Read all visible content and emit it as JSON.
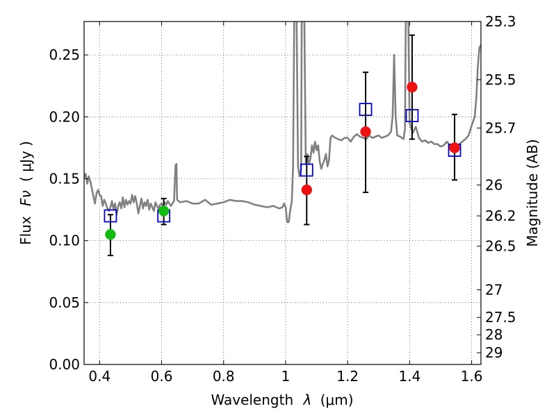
{
  "chart_data": {
    "type": "scatter",
    "xlabel_text": "Wavelength",
    "xlabel_symbol": "λ",
    "xlabel_unit": "(μm)",
    "ylabel_text": "Flux",
    "ylabel_symbol": "Fν",
    "ylabel_unit": "( μJy )",
    "y2label": "Magnitude (AB)",
    "xlim": [
      0.35,
      1.63
    ],
    "ylim": [
      0.0,
      0.277
    ],
    "grid": true,
    "x_ticks": [
      {
        "value": 0.4,
        "label": "0.4"
      },
      {
        "value": 0.6,
        "label": "0.6"
      },
      {
        "value": 0.8,
        "label": "0.8"
      },
      {
        "value": 1.0,
        "label": "1"
      },
      {
        "value": 1.2,
        "label": "1.2"
      },
      {
        "value": 1.4,
        "label": "1.4"
      },
      {
        "value": 1.6,
        "label": "1.6"
      }
    ],
    "y_ticks": [
      {
        "value": 0.0,
        "label": "0.00"
      },
      {
        "value": 0.05,
        "label": "0.05"
      },
      {
        "value": 0.1,
        "label": "0.10"
      },
      {
        "value": 0.15,
        "label": "0.15"
      },
      {
        "value": 0.2,
        "label": "0.20"
      },
      {
        "value": 0.25,
        "label": "0.25"
      }
    ],
    "mag_ticks": [
      {
        "flux": 0.277,
        "label": "25.3"
      },
      {
        "flux": 0.23,
        "label": "25.5"
      },
      {
        "flux": 0.191,
        "label": "25.7"
      },
      {
        "flux": 0.145,
        "label": "26"
      },
      {
        "flux": 0.12,
        "label": "26.2"
      },
      {
        "flux": 0.0955,
        "label": "26.5"
      },
      {
        "flux": 0.0603,
        "label": "27"
      },
      {
        "flux": 0.038,
        "label": "27.5"
      },
      {
        "flux": 0.024,
        "label": "28"
      },
      {
        "flux": 0.0095,
        "label": "29"
      }
    ],
    "series": [
      {
        "kind": "line",
        "color": "#808080",
        "points": [
          [
            0.35,
            0.151
          ],
          [
            0.355,
            0.154
          ],
          [
            0.36,
            0.146
          ],
          [
            0.365,
            0.152
          ],
          [
            0.37,
            0.148
          ],
          [
            0.375,
            0.142
          ],
          [
            0.38,
            0.136
          ],
          [
            0.385,
            0.13
          ],
          [
            0.39,
            0.138
          ],
          [
            0.395,
            0.141
          ],
          [
            0.4,
            0.137
          ],
          [
            0.405,
            0.136
          ],
          [
            0.41,
            0.128
          ],
          [
            0.415,
            0.133
          ],
          [
            0.42,
            0.13
          ],
          [
            0.425,
            0.126
          ],
          [
            0.43,
            0.124
          ],
          [
            0.435,
            0.127
          ],
          [
            0.44,
            0.132
          ],
          [
            0.445,
            0.125
          ],
          [
            0.45,
            0.13
          ],
          [
            0.455,
            0.121
          ],
          [
            0.46,
            0.128
          ],
          [
            0.465,
            0.131
          ],
          [
            0.47,
            0.126
          ],
          [
            0.475,
            0.135
          ],
          [
            0.48,
            0.127
          ],
          [
            0.485,
            0.133
          ],
          [
            0.49,
            0.129
          ],
          [
            0.495,
            0.132
          ],
          [
            0.5,
            0.13
          ],
          [
            0.505,
            0.137
          ],
          [
            0.51,
            0.131
          ],
          [
            0.515,
            0.136
          ],
          [
            0.52,
            0.13
          ],
          [
            0.525,
            0.122
          ],
          [
            0.53,
            0.128
          ],
          [
            0.535,
            0.134
          ],
          [
            0.54,
            0.126
          ],
          [
            0.545,
            0.131
          ],
          [
            0.55,
            0.128
          ],
          [
            0.555,
            0.133
          ],
          [
            0.56,
            0.125
          ],
          [
            0.565,
            0.13
          ],
          [
            0.57,
            0.127
          ],
          [
            0.575,
            0.124
          ],
          [
            0.58,
            0.131
          ],
          [
            0.585,
            0.128
          ],
          [
            0.59,
            0.126
          ],
          [
            0.595,
            0.129
          ],
          [
            0.6,
            0.13
          ],
          [
            0.605,
            0.127
          ],
          [
            0.61,
            0.131
          ],
          [
            0.615,
            0.129
          ],
          [
            0.62,
            0.132
          ],
          [
            0.625,
            0.13
          ],
          [
            0.63,
            0.128
          ],
          [
            0.635,
            0.13
          ],
          [
            0.64,
            0.132
          ],
          [
            0.645,
            0.161
          ],
          [
            0.648,
            0.162
          ],
          [
            0.65,
            0.133
          ],
          [
            0.66,
            0.131
          ],
          [
            0.68,
            0.132
          ],
          [
            0.7,
            0.13
          ],
          [
            0.72,
            0.13
          ],
          [
            0.74,
            0.133
          ],
          [
            0.75,
            0.131
          ],
          [
            0.76,
            0.129
          ],
          [
            0.78,
            0.13
          ],
          [
            0.8,
            0.131
          ],
          [
            0.82,
            0.133
          ],
          [
            0.84,
            0.132
          ],
          [
            0.86,
            0.132
          ],
          [
            0.88,
            0.131
          ],
          [
            0.9,
            0.129
          ],
          [
            0.92,
            0.128
          ],
          [
            0.94,
            0.127
          ],
          [
            0.96,
            0.128
          ],
          [
            0.98,
            0.126
          ],
          [
            0.99,
            0.127
          ],
          [
            0.995,
            0.13
          ],
          [
            1.0,
            0.127
          ],
          [
            1.005,
            0.115
          ],
          [
            1.01,
            0.115
          ],
          [
            1.015,
            0.125
          ],
          [
            1.02,
            0.132
          ],
          [
            1.024,
            0.16
          ],
          [
            1.028,
            0.29
          ],
          [
            1.035,
            0.29
          ],
          [
            1.04,
            0.16
          ],
          [
            1.045,
            0.152
          ],
          [
            1.05,
            0.157
          ],
          [
            1.052,
            0.29
          ],
          [
            1.06,
            0.29
          ],
          [
            1.065,
            0.162
          ],
          [
            1.07,
            0.17
          ],
          [
            1.075,
            0.162
          ],
          [
            1.08,
            0.166
          ],
          [
            1.085,
            0.177
          ],
          [
            1.09,
            0.171
          ],
          [
            1.095,
            0.18
          ],
          [
            1.1,
            0.173
          ],
          [
            1.105,
            0.177
          ],
          [
            1.11,
            0.164
          ],
          [
            1.115,
            0.158
          ],
          [
            1.12,
            0.162
          ],
          [
            1.125,
            0.165
          ],
          [
            1.13,
            0.17
          ],
          [
            1.135,
            0.16
          ],
          [
            1.14,
            0.165
          ],
          [
            1.145,
            0.183
          ],
          [
            1.15,
            0.185
          ],
          [
            1.16,
            0.183
          ],
          [
            1.17,
            0.182
          ],
          [
            1.18,
            0.181
          ],
          [
            1.19,
            0.183
          ],
          [
            1.2,
            0.183
          ],
          [
            1.21,
            0.18
          ],
          [
            1.22,
            0.184
          ],
          [
            1.23,
            0.186
          ],
          [
            1.24,
            0.184
          ],
          [
            1.25,
            0.183
          ],
          [
            1.26,
            0.182
          ],
          [
            1.27,
            0.185
          ],
          [
            1.28,
            0.183
          ],
          [
            1.29,
            0.184
          ],
          [
            1.3,
            0.185
          ],
          [
            1.31,
            0.183
          ],
          [
            1.32,
            0.184
          ],
          [
            1.33,
            0.185
          ],
          [
            1.34,
            0.188
          ],
          [
            1.345,
            0.2
          ],
          [
            1.35,
            0.25
          ],
          [
            1.355,
            0.2
          ],
          [
            1.36,
            0.185
          ],
          [
            1.37,
            0.184
          ],
          [
            1.38,
            0.182
          ],
          [
            1.385,
            0.19
          ],
          [
            1.388,
            0.29
          ],
          [
            1.395,
            0.29
          ],
          [
            1.4,
            0.195
          ],
          [
            1.41,
            0.187
          ],
          [
            1.42,
            0.192
          ],
          [
            1.43,
            0.183
          ],
          [
            1.44,
            0.18
          ],
          [
            1.45,
            0.181
          ],
          [
            1.46,
            0.179
          ],
          [
            1.47,
            0.18
          ],
          [
            1.48,
            0.178
          ],
          [
            1.49,
            0.178
          ],
          [
            1.5,
            0.176
          ],
          [
            1.51,
            0.177
          ],
          [
            1.52,
            0.18
          ],
          [
            1.53,
            0.177
          ],
          [
            1.54,
            0.177
          ],
          [
            1.55,
            0.176
          ],
          [
            1.56,
            0.178
          ],
          [
            1.57,
            0.18
          ],
          [
            1.58,
            0.182
          ],
          [
            1.59,
            0.185
          ],
          [
            1.6,
            0.193
          ],
          [
            1.61,
            0.2
          ],
          [
            1.615,
            0.215
          ],
          [
            1.62,
            0.24
          ],
          [
            1.625,
            0.256
          ],
          [
            1.63,
            0.258
          ]
        ]
      },
      {
        "kind": "errorbar",
        "color": "#000000",
        "points": [
          {
            "x": 0.435,
            "low": 0.088,
            "high": 0.121
          },
          {
            "x": 0.607,
            "low": 0.113,
            "high": 0.134
          },
          {
            "x": 1.068,
            "low": 0.113,
            "high": 0.168
          },
          {
            "x": 1.258,
            "low": 0.139,
            "high": 0.236
          },
          {
            "x": 1.408,
            "low": 0.182,
            "high": 0.266
          },
          {
            "x": 1.545,
            "low": 0.149,
            "high": 0.202
          }
        ]
      },
      {
        "kind": "open-square",
        "color": "#0000cc",
        "points": [
          [
            0.435,
            0.12
          ],
          [
            0.607,
            0.12
          ],
          [
            1.068,
            0.157
          ],
          [
            1.258,
            0.206
          ],
          [
            1.408,
            0.201
          ],
          [
            1.545,
            0.173
          ]
        ]
      },
      {
        "kind": "filled-circle",
        "color": "#11bb11",
        "points": [
          [
            0.435,
            0.105
          ],
          [
            0.607,
            0.124
          ]
        ]
      },
      {
        "kind": "filled-circle",
        "color": "#ee1111",
        "points": [
          [
            1.068,
            0.141
          ],
          [
            1.258,
            0.188
          ],
          [
            1.408,
            0.224
          ],
          [
            1.545,
            0.175
          ]
        ]
      }
    ]
  }
}
